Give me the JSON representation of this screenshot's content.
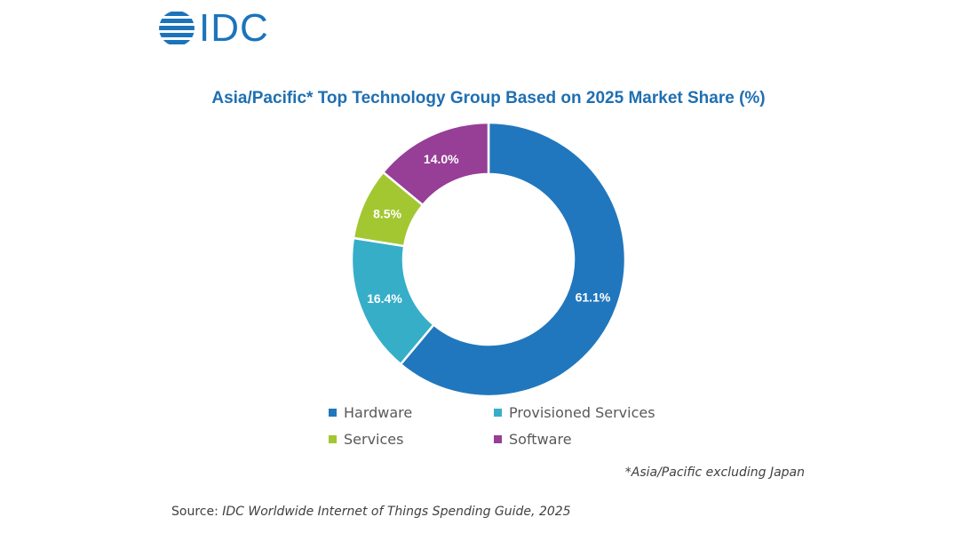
{
  "logo": {
    "text": "IDC"
  },
  "footnote": "*Asia/Pacific excluding Japan",
  "source": {
    "prefix": "Source: ",
    "title": "IDC Worldwide Internet of Things Spending Guide, 2025"
  },
  "chart_data": {
    "type": "pie",
    "donut": true,
    "title": "Asia/Pacific* Top Technology Group Based on 2025 Market Share (%)",
    "categories": [
      "Hardware",
      "Provisioned Services",
      "Services",
      "Software"
    ],
    "values": [
      61.1,
      16.4,
      8.5,
      14.0
    ],
    "value_labels": [
      "61.1%",
      "16.4%",
      "8.5%",
      "14.0%"
    ],
    "unit": "%",
    "colors": [
      "#2177bd",
      "#36aec8",
      "#a3c731",
      "#973e96"
    ],
    "legend_position": "bottom"
  }
}
